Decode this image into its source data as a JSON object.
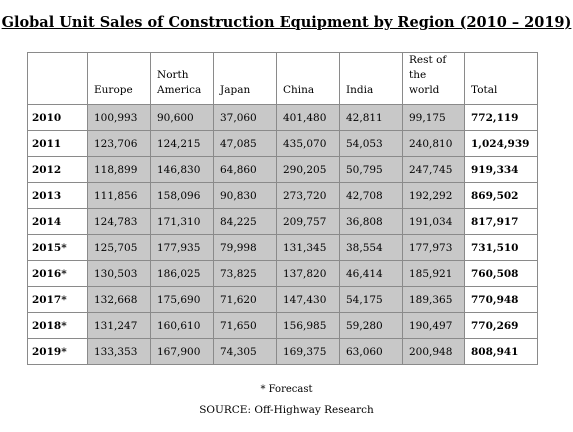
{
  "title": "Global Unit Sales of Construction Equipment by Region (2010 – 2019)",
  "columns": [
    "",
    "Europe",
    "North America",
    "Japan",
    "China",
    "India",
    "Rest of the world",
    "Total"
  ],
  "rows": [
    {
      "year": "2010",
      "values": [
        "100,993",
        "90,600",
        "37,060",
        "401,480",
        "42,811",
        "99,175"
      ],
      "total": "772,119"
    },
    {
      "year": "2011",
      "values": [
        "123,706",
        "124,215",
        "47,085",
        "435,070",
        "54,053",
        "240,810"
      ],
      "total": "1,024,939"
    },
    {
      "year": "2012",
      "values": [
        "118,899",
        "146,830",
        "64,860",
        "290,205",
        "50,795",
        "247,745"
      ],
      "total": "919,334"
    },
    {
      "year": "2013",
      "values": [
        "111,856",
        "158,096",
        "90,830",
        "273,720",
        "42,708",
        "192,292"
      ],
      "total": "869,502"
    },
    {
      "year": "2014",
      "values": [
        "124,783",
        "171,310",
        "84,225",
        "209,757",
        "36,808",
        "191,034"
      ],
      "total": "817,917"
    },
    {
      "year": "2015*",
      "values": [
        "125,705",
        "177,935",
        "79,998",
        "131,345",
        "38,554",
        "177,973"
      ],
      "total": "731,510"
    },
    {
      "year": "2016*",
      "values": [
        "130,503",
        "186,025",
        "73,825",
        "137,820",
        "46,414",
        "185,921"
      ],
      "total": "760,508"
    },
    {
      "year": "2017*",
      "values": [
        "132,668",
        "175,690",
        "71,620",
        "147,430",
        "54,175",
        "189,365"
      ],
      "total": "770,948"
    },
    {
      "year": "2018*",
      "values": [
        "131,247",
        "160,610",
        "71,650",
        "156,985",
        "59,280",
        "190,497"
      ],
      "total": "770,269"
    },
    {
      "year": "2019*",
      "values": [
        "133,353",
        "167,900",
        "74,305",
        "169,375",
        "63,060",
        "200,948"
      ],
      "total": "808,941"
    }
  ],
  "footnote": "* Forecast",
  "source": "SOURCE: Off-Highway Research"
}
